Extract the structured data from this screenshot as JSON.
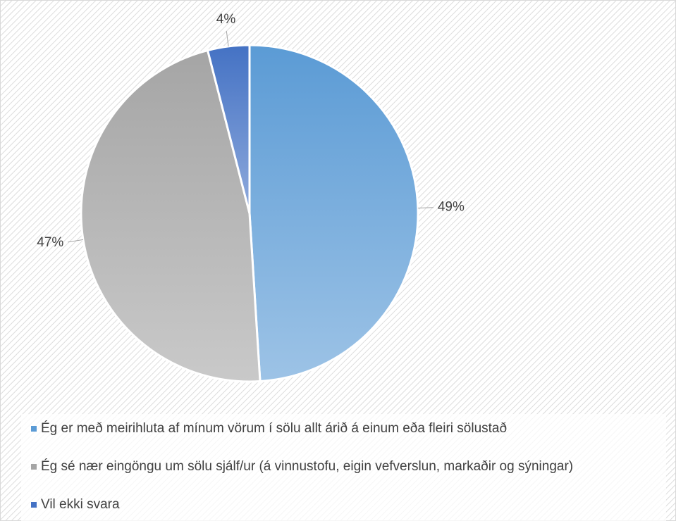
{
  "chart_data": {
    "type": "pie",
    "categories": [
      "Ég er með meirihluta af mínum vörum í sölu allt árið á einum eða fleiri sölustað",
      "Ég sé nær eingöngu um sölu sjálf/ur (á vinnustofu, eigin vefverslun, markaðir og sýningar)",
      "Vil ekki svara"
    ],
    "values": [
      49,
      47,
      4
    ],
    "value_labels": [
      "49%",
      "47%",
      "4%"
    ],
    "colors": [
      "#5b9bd5",
      "#a5a5a5",
      "#4472c4"
    ],
    "legend": "bottom"
  }
}
